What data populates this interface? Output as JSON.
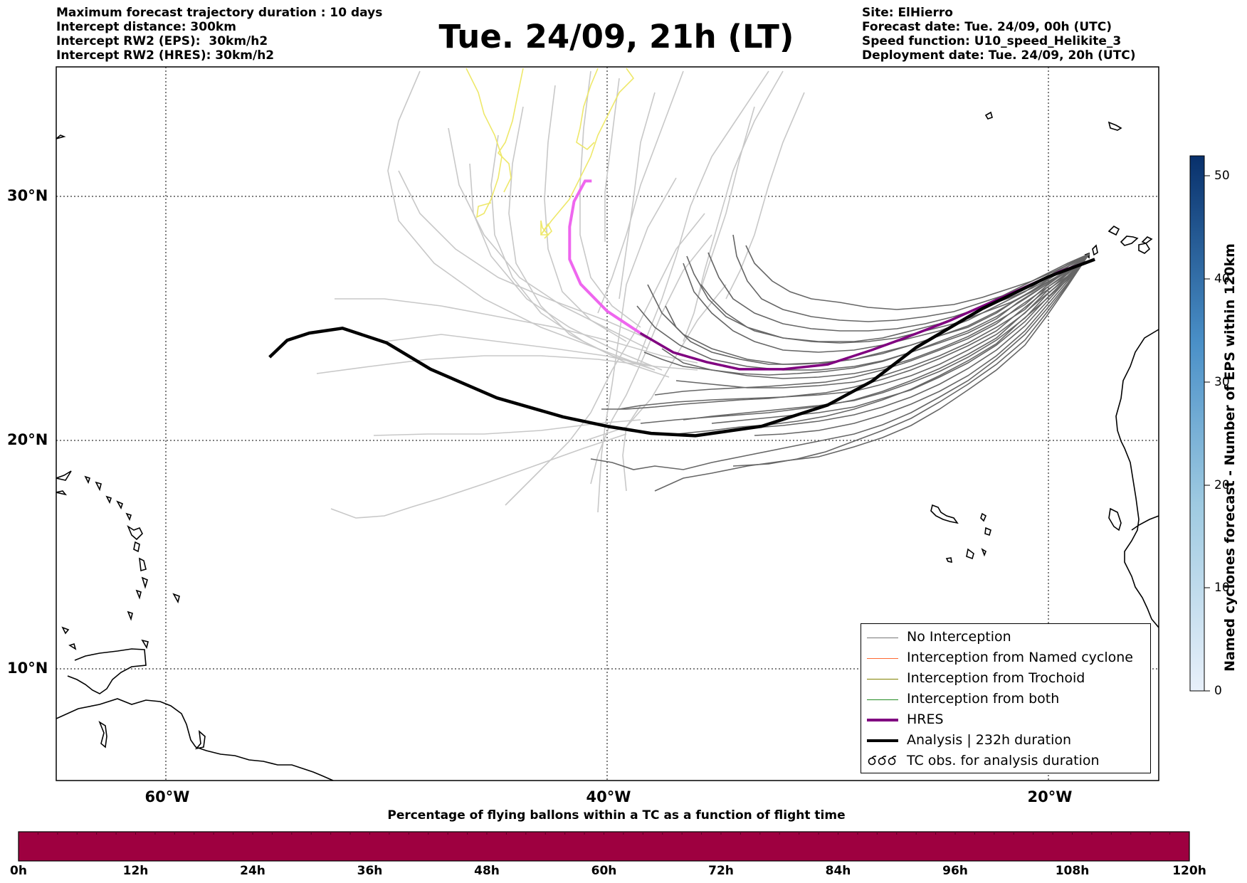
{
  "header_left": [
    "Maximum forecast trajectory duration : 10 days",
    "Intercept distance: 300km",
    "Intercept RW2 (EPS):  30km/h2",
    "Intercept RW2 (HRES): 30km/h2"
  ],
  "title": "Tue. 24/09, 21h (LT)",
  "header_right": [
    "Site: ElHierro",
    "Forecast date: Tue. 24/09, 00h (UTC)",
    "Speed function: U10_speed_Helikite_3",
    "Deployment date: Tue. 24/09, 20h (UTC)"
  ],
  "map": {
    "lon_range": [
      -65,
      -15
    ],
    "lat_range": [
      5,
      34.3
    ],
    "lat_labels": [
      "30°N",
      "20°N",
      "10°N"
    ],
    "lon_labels": [
      "60°W",
      "40°W",
      "20°W"
    ],
    "colors": {
      "no_interception": "#666666",
      "named_cyclone": "#ff6a33",
      "trochoid": "#808000",
      "both": "#228b22",
      "hres": "#800080",
      "analysis": "#000000",
      "faded_ensemble": "#c8c8c8",
      "faded_yellow": "#eee86a",
      "hres_faded": "#ee66ee"
    },
    "analysis_track": [
      [
        -17.9,
        27.5
      ],
      [
        -20,
        26.8
      ],
      [
        -23,
        25.5
      ],
      [
        -26,
        23.9
      ],
      [
        -28,
        22.5
      ],
      [
        -30,
        21.5
      ],
      [
        -33,
        20.6
      ],
      [
        -36,
        20.2
      ],
      [
        -38,
        20.3
      ],
      [
        -40,
        20.6
      ],
      [
        -42,
        21.0
      ],
      [
        -45,
        21.8
      ],
      [
        -48,
        23.0
      ],
      [
        -50,
        24.1
      ],
      [
        -52,
        24.7
      ],
      [
        -53.5,
        24.5
      ],
      [
        -54.5,
        24.2
      ],
      [
        -55.3,
        23.5
      ]
    ],
    "hres_track": [
      [
        -17.9,
        27.5
      ],
      [
        -19.5,
        27.0
      ],
      [
        -22,
        26.0
      ],
      [
        -24.5,
        25.0
      ],
      [
        -26.5,
        24.3
      ],
      [
        -28,
        23.8
      ],
      [
        -30,
        23.2
      ],
      [
        -32,
        23.0
      ],
      [
        -34,
        23.0
      ],
      [
        -35.5,
        23.3
      ],
      [
        -37,
        23.7
      ],
      [
        -38.5,
        24.5
      ],
      [
        -40,
        25.4
      ],
      [
        -41.2,
        26.5
      ],
      [
        -41.7,
        27.5
      ],
      [
        -41.7,
        28.8
      ],
      [
        -41.5,
        29.8
      ],
      [
        -41.0,
        30.6
      ],
      [
        -40.7,
        30.6
      ]
    ]
  },
  "legend": {
    "items": [
      {
        "label": "No Interception",
        "color": "#777777",
        "width": 1.5,
        "type": "line"
      },
      {
        "label": "Interception from Named cyclone",
        "color": "#ff6a33",
        "width": 1.5,
        "type": "line"
      },
      {
        "label": "Interception from Trochoid",
        "color": "#808000",
        "width": 1.5,
        "type": "line"
      },
      {
        "label": "Interception from both",
        "color": "#228b22",
        "width": 1.5,
        "type": "line"
      },
      {
        "label": "HRES",
        "color": "#800080",
        "width": 4,
        "type": "line"
      },
      {
        "label": "Analysis | 232h duration",
        "color": "#000000",
        "width": 4.5,
        "type": "line"
      },
      {
        "label": "TC obs. for analysis duration",
        "color": "#000000",
        "width": 1.5,
        "type": "symbol"
      }
    ]
  },
  "colorbar_bottom": {
    "title": "Percentage of flying ballons within a TC as a function of flight time",
    "ticks": [
      "0h",
      "12h",
      "24h",
      "36h",
      "48h",
      "60h",
      "72h",
      "84h",
      "96h",
      "108h",
      "120h"
    ],
    "fill_color": "#9e0040"
  },
  "colorbar_right": {
    "label": "Named cyclones forecast - Number of EPS within 120km",
    "ticks": [
      "0",
      "10",
      "20",
      "30",
      "40",
      "50"
    ],
    "max": 52,
    "color_low": "#e6eef8",
    "color_high": "#08306b"
  }
}
